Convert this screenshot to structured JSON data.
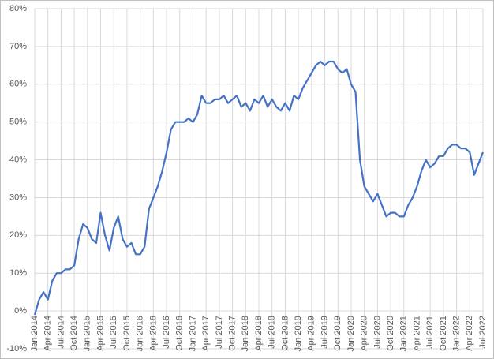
{
  "chart_data": {
    "type": "line",
    "categories": [
      "Jan 2014",
      null,
      null,
      "Apr 2014",
      null,
      null,
      "Jul 2014",
      null,
      null,
      "Oct 2014",
      null,
      null,
      "Jan 2015",
      null,
      null,
      "Apr 2015",
      null,
      null,
      "Jul 2015",
      null,
      null,
      "Oct 2015",
      null,
      null,
      "Jan 2016",
      null,
      null,
      "Apr 2016",
      null,
      null,
      "Jul 2016",
      null,
      null,
      "Oct 2016",
      null,
      null,
      "Jan 2017",
      null,
      null,
      "Apr 2017",
      null,
      null,
      "Jul 2017",
      null,
      null,
      "Oct 2017",
      null,
      null,
      "Jan 2018",
      null,
      null,
      "Apr 2018",
      null,
      null,
      "Jul 2018",
      null,
      null,
      "Oct 2018",
      null,
      null,
      "Jan 2019",
      null,
      null,
      "Apr 2019",
      null,
      null,
      "Jul 2019",
      null,
      null,
      "Oct 2019",
      null,
      null,
      "Jan 2020",
      null,
      null,
      "Apr 2020",
      null,
      null,
      "Jul 2020",
      null,
      null,
      "Oct 2020",
      null,
      null,
      "Jan 2021",
      null,
      null,
      "Apr 2021",
      null,
      null,
      "Jul 2021",
      null,
      null,
      "Oct 2021",
      null,
      null,
      "Jan 2022",
      null,
      null,
      "Apr 2022",
      null,
      null,
      "Jul 2022"
    ],
    "values": [
      -1,
      3,
      5,
      3,
      8,
      10,
      10,
      11,
      11,
      12,
      19,
      23,
      22,
      19,
      18,
      26,
      20,
      16,
      22,
      25,
      19,
      17,
      18,
      15,
      15,
      17,
      27,
      30,
      33,
      37,
      42,
      48,
      50,
      50,
      50,
      51,
      50,
      52,
      57,
      55,
      55,
      56,
      56,
      57,
      55,
      56,
      57,
      54,
      55,
      53,
      56,
      55,
      57,
      54,
      56,
      54,
      53,
      55,
      53,
      57,
      56,
      59,
      61,
      63,
      65,
      66,
      65,
      66,
      66,
      64,
      63,
      64,
      60,
      58,
      40,
      33,
      31,
      29,
      31,
      28,
      25,
      26,
      26,
      25,
      25,
      28,
      30,
      33,
      37,
      40,
      38,
      39,
      41,
      41,
      43,
      44,
      44,
      43,
      43,
      42,
      36,
      39,
      42
    ],
    "color": "#4472c4",
    "ylim": [
      -10,
      80
    ],
    "yticks": [
      {
        "value": -10,
        "label": "-10%"
      },
      {
        "value": 0,
        "label": "0%"
      },
      {
        "value": 10,
        "label": "10%"
      },
      {
        "value": 20,
        "label": "20%"
      },
      {
        "value": 30,
        "label": "30%"
      },
      {
        "value": 40,
        "label": "40%"
      },
      {
        "value": 50,
        "label": "50%"
      },
      {
        "value": 60,
        "label": "60%"
      },
      {
        "value": 70,
        "label": "70%"
      },
      {
        "value": 80,
        "label": "80%"
      }
    ],
    "grid": true
  }
}
